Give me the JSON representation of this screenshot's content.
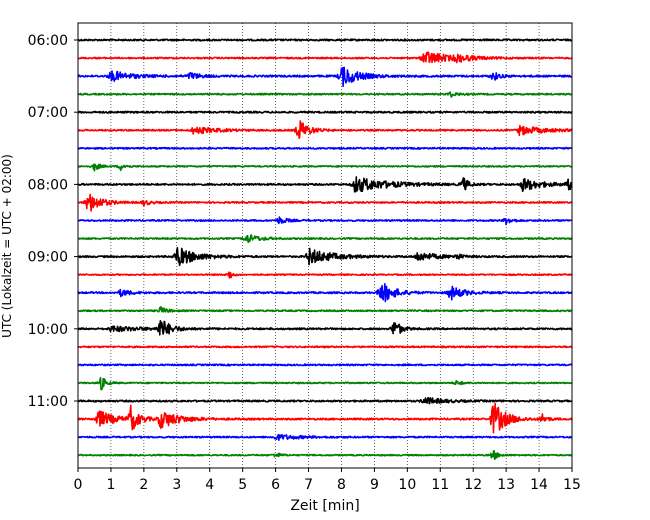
{
  "chart_data": {
    "type": "line",
    "title": "",
    "xlabel": "Zeit  [min]",
    "ylabel": "UTC (Lokalzeit = UTC + 02:00)",
    "xlim": [
      0,
      15
    ],
    "xticks": [
      0,
      1,
      2,
      3,
      4,
      5,
      6,
      7,
      8,
      9,
      10,
      11,
      12,
      13,
      14,
      15
    ],
    "xgrid": "dotted vertical lines at each minute",
    "trace_interval_min": 15,
    "trace_order_top_to_bottom": true,
    "start_time": "06:00",
    "yticks": [
      {
        "label": "06:00",
        "trace_index": 0
      },
      {
        "label": "07:00",
        "trace_index": 4
      },
      {
        "label": "08:00",
        "trace_index": 8
      },
      {
        "label": "09:00",
        "trace_index": 12
      },
      {
        "label": "10:00",
        "trace_index": 16
      },
      {
        "label": "11:00",
        "trace_index": 20
      }
    ],
    "color_cycle": [
      "#000000",
      "#ff0000",
      "#0000ff",
      "#008000"
    ],
    "series": [
      {
        "noise": 0.9,
        "events": []
      },
      {
        "noise": 0.8,
        "events": [
          {
            "t": 10.5,
            "amp": 8,
            "dur": 1.5
          },
          {
            "t": 11.5,
            "amp": 3,
            "dur": 1.0
          }
        ]
      },
      {
        "noise": 1.0,
        "events": [
          {
            "t": 1.0,
            "amp": 6,
            "dur": 1.2
          },
          {
            "t": 3.4,
            "amp": 4,
            "dur": 0.6
          },
          {
            "t": 8.0,
            "amp": 12,
            "dur": 1.0
          },
          {
            "t": 12.6,
            "amp": 5,
            "dur": 0.4
          }
        ]
      },
      {
        "noise": 0.8,
        "events": [
          {
            "t": 11.3,
            "amp": 3,
            "dur": 0.4
          }
        ]
      },
      {
        "noise": 0.9,
        "events": []
      },
      {
        "noise": 0.8,
        "events": [
          {
            "t": 3.5,
            "amp": 4,
            "dur": 1.5
          },
          {
            "t": 6.7,
            "amp": 13,
            "dur": 0.6
          },
          {
            "t": 13.4,
            "amp": 5,
            "dur": 1.6
          }
        ]
      },
      {
        "noise": 0.8,
        "events": []
      },
      {
        "noise": 0.7,
        "events": [
          {
            "t": 0.5,
            "amp": 5,
            "dur": 0.3
          },
          {
            "t": 1.3,
            "amp": 4,
            "dur": 0.3
          }
        ]
      },
      {
        "noise": 0.9,
        "events": [
          {
            "t": 8.4,
            "amp": 9,
            "dur": 2.0
          },
          {
            "t": 11.7,
            "amp": 8,
            "dur": 0.3
          },
          {
            "t": 13.5,
            "amp": 7,
            "dur": 1.2
          },
          {
            "t": 14.9,
            "amp": 6,
            "dur": 0.3
          }
        ]
      },
      {
        "noise": 0.8,
        "events": [
          {
            "t": 0.3,
            "amp": 12,
            "dur": 0.8
          },
          {
            "t": 2.0,
            "amp": 3,
            "dur": 0.4
          }
        ]
      },
      {
        "noise": 0.8,
        "events": [
          {
            "t": 6.1,
            "amp": 4,
            "dur": 0.5
          },
          {
            "t": 13.0,
            "amp": 4,
            "dur": 0.4
          }
        ]
      },
      {
        "noise": 0.8,
        "events": [
          {
            "t": 5.1,
            "amp": 5,
            "dur": 0.8
          }
        ]
      },
      {
        "noise": 0.9,
        "events": [
          {
            "t": 3.0,
            "amp": 11,
            "dur": 1.2
          },
          {
            "t": 7.0,
            "amp": 9,
            "dur": 1.5
          },
          {
            "t": 10.3,
            "amp": 5,
            "dur": 1.2
          },
          {
            "t": 11.5,
            "amp": 3,
            "dur": 0.3
          }
        ]
      },
      {
        "noise": 0.7,
        "events": [
          {
            "t": 4.6,
            "amp": 5,
            "dur": 0.2
          }
        ]
      },
      {
        "noise": 0.9,
        "events": [
          {
            "t": 1.3,
            "amp": 4,
            "dur": 0.6
          },
          {
            "t": 9.2,
            "amp": 13,
            "dur": 0.8
          },
          {
            "t": 11.3,
            "amp": 8,
            "dur": 0.8
          }
        ]
      },
      {
        "noise": 0.8,
        "events": [
          {
            "t": 2.5,
            "amp": 4,
            "dur": 0.4
          }
        ]
      },
      {
        "noise": 0.9,
        "events": [
          {
            "t": 1.0,
            "amp": 3,
            "dur": 2.0
          },
          {
            "t": 2.5,
            "amp": 12,
            "dur": 0.6
          },
          {
            "t": 9.6,
            "amp": 11,
            "dur": 0.4
          }
        ]
      },
      {
        "noise": 0.8,
        "events": []
      },
      {
        "noise": 0.8,
        "events": []
      },
      {
        "noise": 0.7,
        "events": [
          {
            "t": 0.7,
            "amp": 8,
            "dur": 0.3
          },
          {
            "t": 11.5,
            "amp": 3,
            "dur": 0.3
          }
        ]
      },
      {
        "noise": 0.9,
        "events": [
          {
            "t": 10.5,
            "amp": 4,
            "dur": 1.2
          }
        ]
      },
      {
        "noise": 0.9,
        "events": [
          {
            "t": 0.6,
            "amp": 10,
            "dur": 1.0
          },
          {
            "t": 1.6,
            "amp": 14,
            "dur": 0.5
          },
          {
            "t": 2.5,
            "amp": 10,
            "dur": 1.2
          },
          {
            "t": 12.6,
            "amp": 20,
            "dur": 0.8
          },
          {
            "t": 14.1,
            "amp": 5,
            "dur": 0.3
          }
        ]
      },
      {
        "noise": 0.8,
        "events": [
          {
            "t": 6.0,
            "amp": 3,
            "dur": 1.5
          }
        ]
      },
      {
        "noise": 0.7,
        "events": [
          {
            "t": 6.0,
            "amp": 3,
            "dur": 0.3
          },
          {
            "t": 12.6,
            "amp": 6,
            "dur": 0.3
          }
        ]
      }
    ]
  }
}
